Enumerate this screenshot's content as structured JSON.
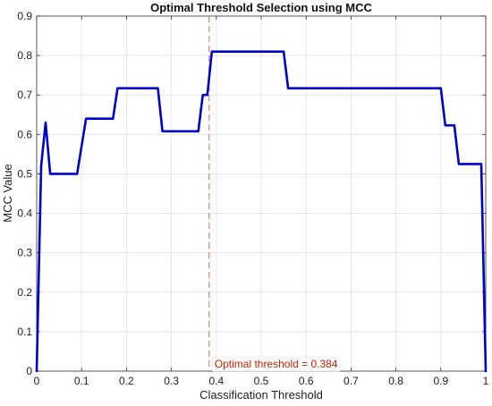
{
  "chart_data": {
    "type": "line",
    "title": "Optimal Threshold Selection using MCC",
    "xlabel": "Classification Threshold",
    "ylabel": "MCC Value",
    "xlim": [
      0,
      1
    ],
    "ylim": [
      0,
      0.9
    ],
    "xticks": [
      0,
      0.1,
      0.2,
      0.3,
      0.4,
      0.5,
      0.6,
      0.7,
      0.8,
      0.9,
      1
    ],
    "xtick_labels": [
      "0",
      "0.1",
      "0.2",
      "0.3",
      "0.4",
      "0.5",
      "0.6",
      "0.7",
      "0.8",
      "0.9",
      "1"
    ],
    "yticks": [
      0,
      0.1,
      0.2,
      0.3,
      0.4,
      0.5,
      0.6,
      0.7,
      0.8,
      0.9
    ],
    "ytick_labels": [
      "0",
      "0.1",
      "0.2",
      "0.3",
      "0.4",
      "0.5",
      "0.6",
      "0.7",
      "0.8",
      "0.9"
    ],
    "grid": true,
    "series": [
      {
        "color": "#0000cc",
        "x": [
          0,
          0.01,
          0.02,
          0.03,
          0.09,
          0.11,
          0.17,
          0.18,
          0.27,
          0.28,
          0.36,
          0.37,
          0.38,
          0.39,
          0.55,
          0.56,
          0.9,
          0.91,
          0.93,
          0.94,
          0.96,
          0.99,
          1.0
        ],
        "y": [
          0,
          0.52,
          0.63,
          0.5,
          0.5,
          0.64,
          0.64,
          0.717,
          0.717,
          0.608,
          0.608,
          0.7,
          0.7,
          0.81,
          0.81,
          0.717,
          0.717,
          0.623,
          0.623,
          0.525,
          0.525,
          0.525,
          0
        ]
      }
    ],
    "optimal_threshold": 0.384,
    "threshold_line_color": "#d9826e",
    "annotation": {
      "text": "Optimal threshold = 0.384",
      "color": "#cc2200",
      "position": "bottom, right of threshold line"
    }
  }
}
